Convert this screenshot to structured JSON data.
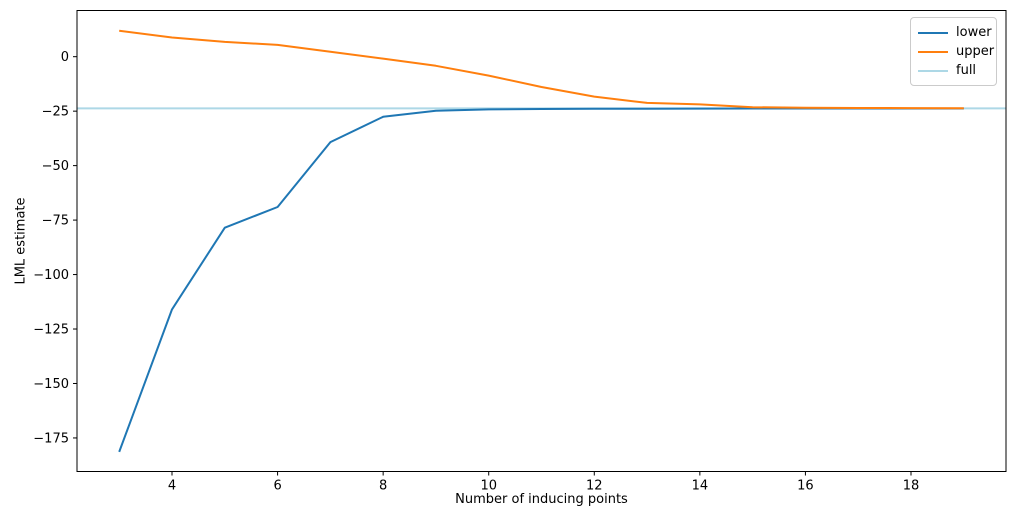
{
  "chart_data": {
    "type": "line",
    "title": "",
    "xlabel": "Number of inducing points",
    "ylabel": "LML estimate",
    "x": [
      3,
      4,
      5,
      6,
      7,
      8,
      9,
      10,
      11,
      12,
      13,
      14,
      15,
      16,
      17,
      18,
      19
    ],
    "series": [
      {
        "name": "lower",
        "color": "#1f77b4",
        "values": [
          -181.4,
          -116.0,
          -78.5,
          -69.0,
          -39.2,
          -27.6,
          -24.8,
          -24.2,
          -24.0,
          -23.9,
          -23.9,
          -23.85,
          -23.8,
          -23.8,
          -23.8,
          -23.8,
          -23.8
        ]
      },
      {
        "name": "upper",
        "color": "#ff7f0e",
        "values": [
          11.9,
          8.8,
          6.8,
          5.4,
          2.3,
          -0.9,
          -4.2,
          -8.7,
          -13.9,
          -18.3,
          -21.2,
          -21.9,
          -23.2,
          -23.45,
          -23.55,
          -23.6,
          -23.65
        ]
      }
    ],
    "reference_line": {
      "name": "full",
      "color": "#add8e6",
      "value": -23.7
    },
    "xlim": [
      2.2,
      19.8
    ],
    "ylim": [
      -190.4,
      21.2
    ],
    "xticks": [
      4,
      6,
      8,
      10,
      12,
      14,
      16,
      18
    ],
    "yticks": [
      0,
      -25,
      -50,
      -75,
      -100,
      -125,
      -150,
      -175
    ],
    "legend": {
      "position": "upper right",
      "entries": [
        "lower",
        "upper",
        "full"
      ]
    },
    "grid": false
  }
}
